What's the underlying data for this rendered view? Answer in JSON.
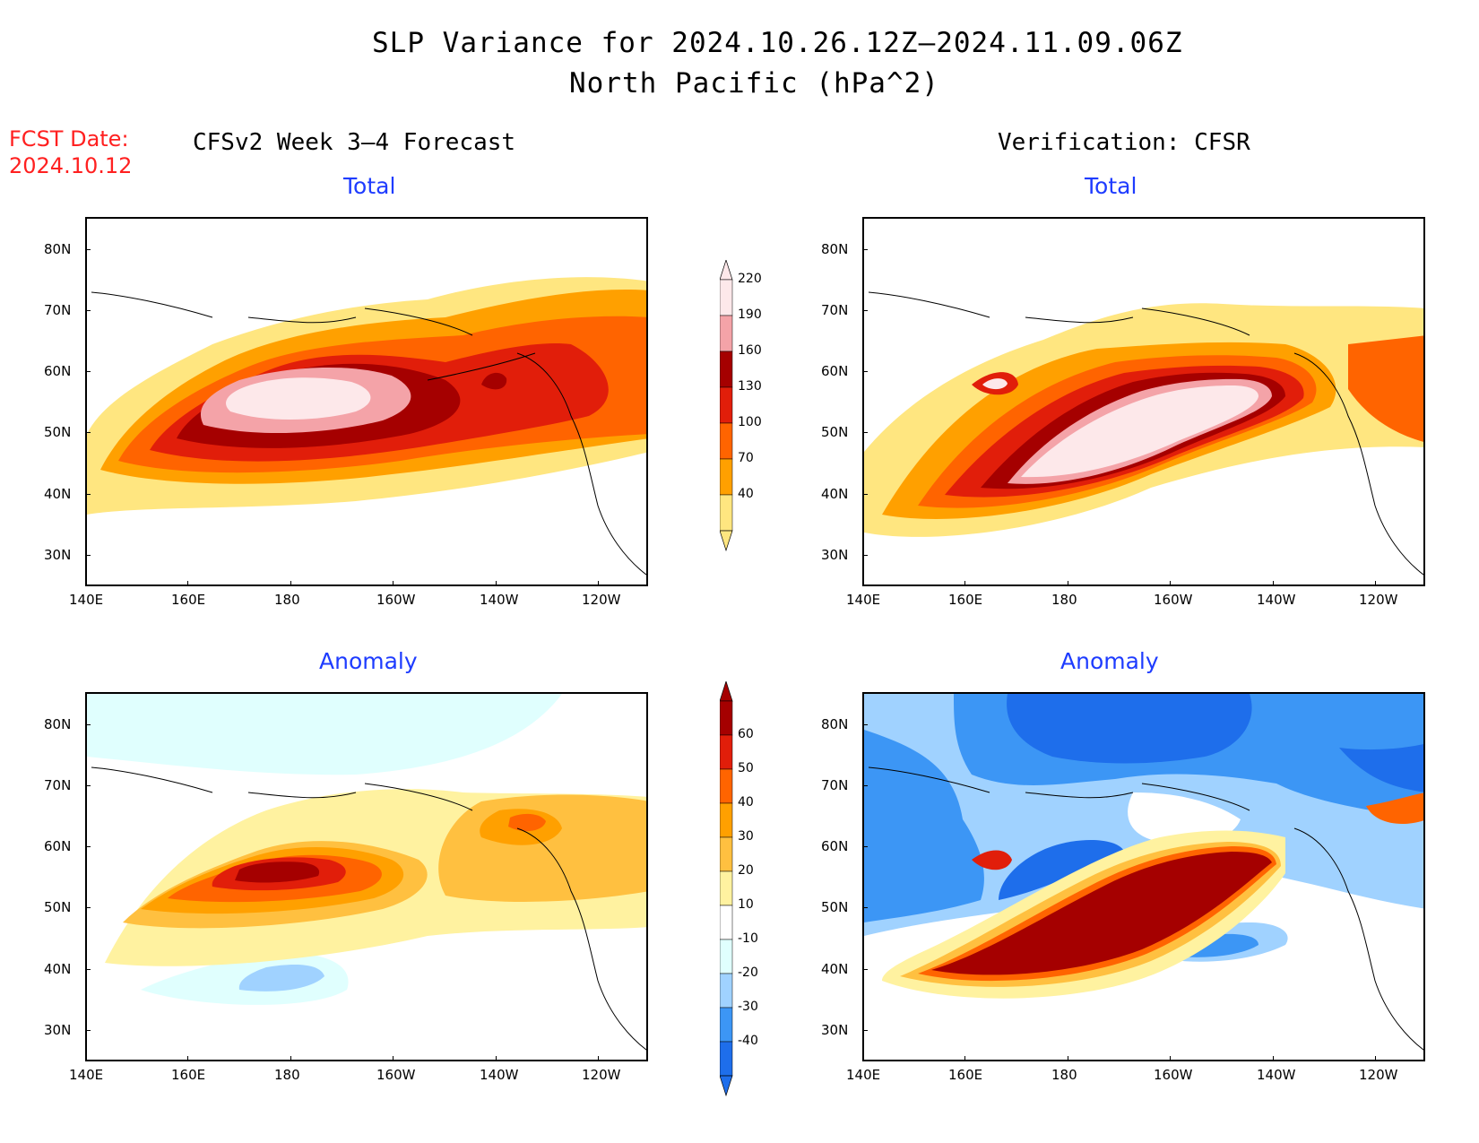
{
  "header": {
    "title_line1": "SLP Variance for 2024.10.26.12Z–2024.11.09.06Z",
    "title_line2": "North Pacific (hPa^2)",
    "fcst_label": "FCST Date:",
    "fcst_date": "2024.10.12",
    "left_heading": "CFSv2 Week 3–4 Forecast",
    "right_heading": "Verification: CFSR"
  },
  "panels": {
    "fc_total_label": "Total",
    "ver_total_label": "Total",
    "fc_anom_label": "Anomaly",
    "ver_anom_label": "Anomaly"
  },
  "axes": {
    "lon_labels": [
      "140E",
      "160E",
      "180",
      "160W",
      "140W",
      "120W"
    ],
    "lat_labels": [
      "80N",
      "70N",
      "60N",
      "50N",
      "40N",
      "30N"
    ]
  },
  "colorbars": {
    "total": {
      "levels": [
        "40",
        "70",
        "100",
        "130",
        "160",
        "190",
        "220"
      ],
      "colors": [
        "#ffe680",
        "#ffa000",
        "#ff6400",
        "#e11e0a",
        "#a50000",
        "#f4a3a8",
        "#fde8ea"
      ]
    },
    "anomaly": {
      "levels": [
        "60",
        "50",
        "40",
        "30",
        "20",
        "10",
        "-10",
        "-20",
        "-30",
        "-40"
      ],
      "colors": [
        "#a50000",
        "#e11e0a",
        "#ff6400",
        "#ffa000",
        "#ffc040",
        "#fff2a0",
        "#ffffff",
        "#e0fffe",
        "#a0d2ff",
        "#3c96f5",
        "#1e6eeb"
      ]
    }
  }
}
